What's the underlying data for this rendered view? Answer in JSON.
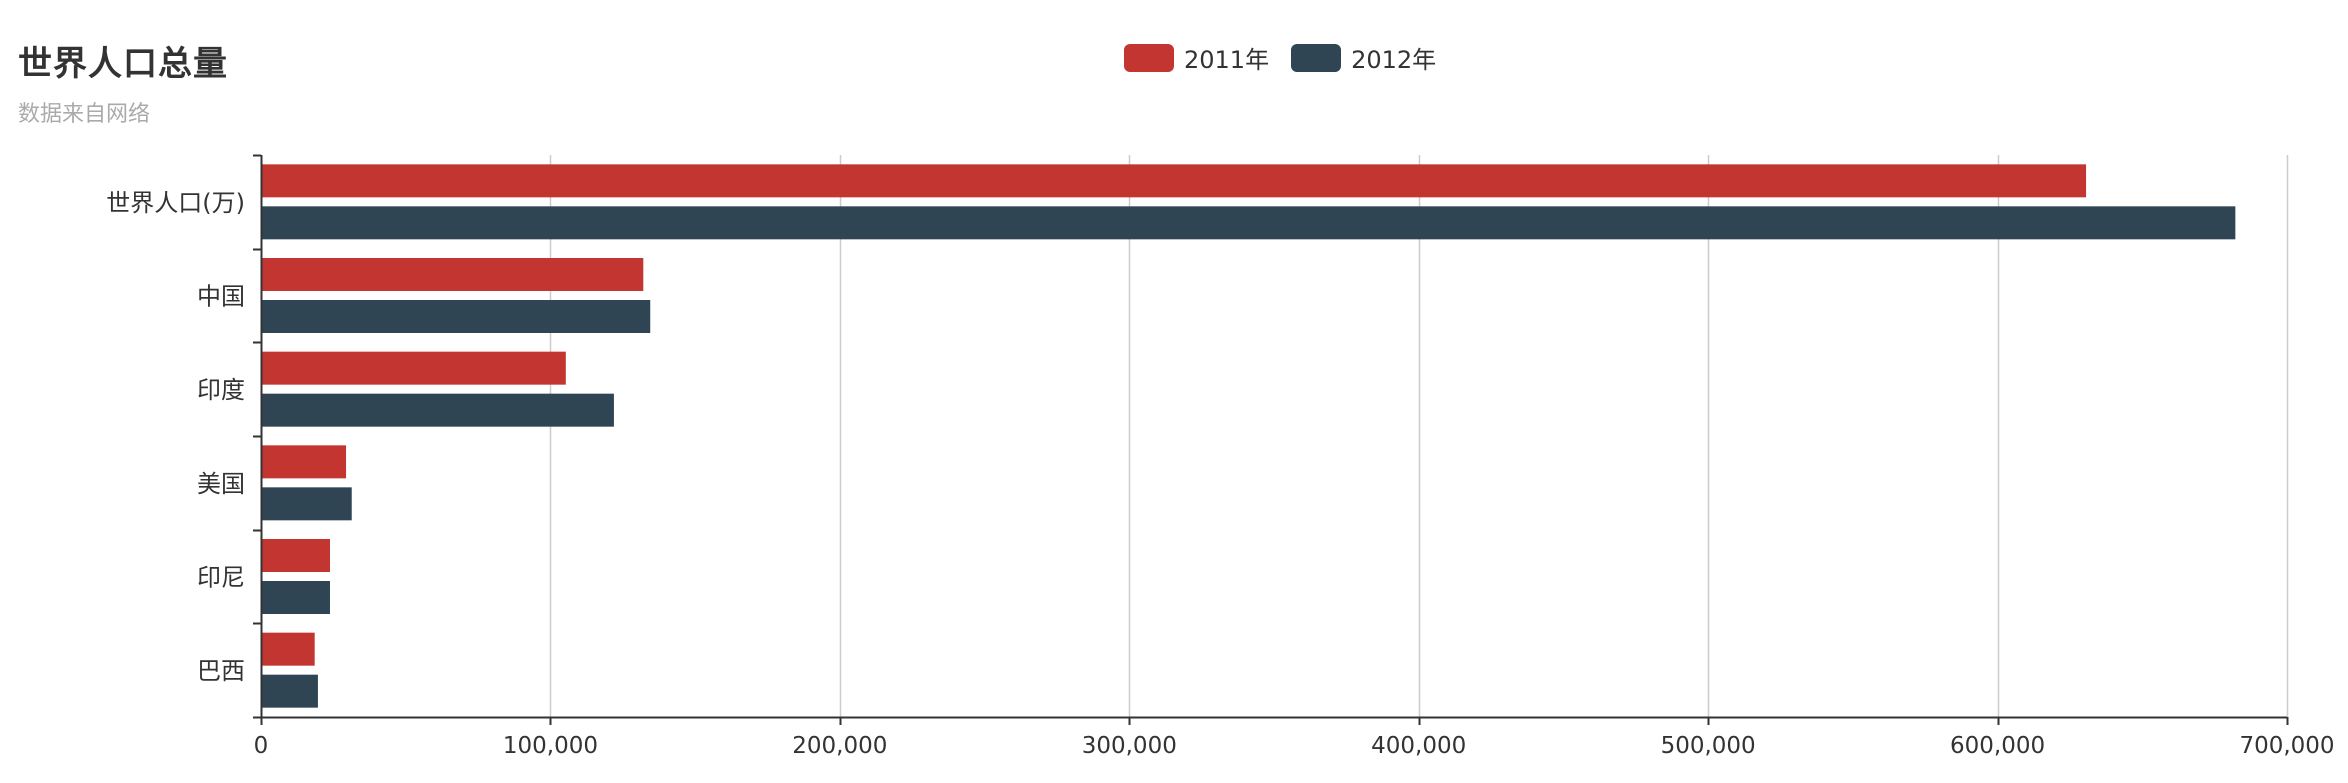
{
  "chart_data": {
    "type": "bar",
    "orientation": "horizontal",
    "title": "世界人口总量",
    "subtitle": "数据来自网络",
    "categories": [
      "世界人口(万)",
      "中国",
      "印度",
      "美国",
      "印尼",
      "巴西"
    ],
    "series": [
      {
        "name": "2011年",
        "color": "#c23531",
        "values": [
          630230,
          131744,
          104970,
          29034,
          23489,
          18203
        ]
      },
      {
        "name": "2012年",
        "color": "#2f4554",
        "values": [
          681807,
          134141,
          121594,
          31000,
          23489,
          19325
        ]
      }
    ],
    "xlim": [
      0,
      700000
    ],
    "xticks": [
      0,
      100000,
      200000,
      300000,
      400000,
      500000,
      600000,
      700000
    ],
    "xtick_labels": [
      "0",
      "100,000",
      "200,000",
      "300,000",
      "400,000",
      "500,000",
      "600,000",
      "700,000"
    ],
    "grid": true,
    "legend_position": "top-center"
  },
  "colors": {
    "axis": "#333333",
    "grid": "#cccccc",
    "title": "#333333",
    "subtitle": "#aaaaaa"
  }
}
